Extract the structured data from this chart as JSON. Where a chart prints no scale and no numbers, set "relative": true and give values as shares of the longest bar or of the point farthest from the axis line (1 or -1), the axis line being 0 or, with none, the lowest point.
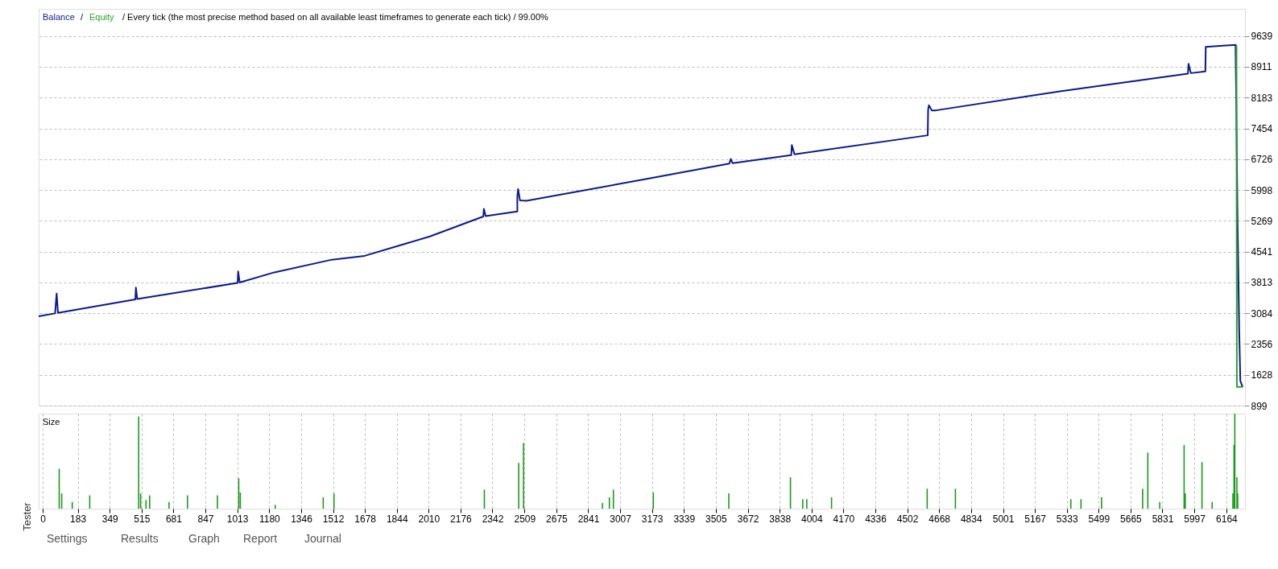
{
  "chart_data": [
    {
      "type": "line",
      "title": "/ Every tick (the most precise method based on all available least timeframes to generate each tick) / 99.00%",
      "legend": "top left",
      "annotations": [
        "/"
      ],
      "grid": true,
      "tick_labels": "y",
      "xlim": [
        0,
        6240
      ],
      "ylim": [
        899,
        10280
      ],
      "yticks": [
        899,
        1628,
        2356,
        3084,
        3813,
        4541,
        5269,
        5998,
        6726,
        7454,
        8183,
        8911,
        9639
      ],
      "series": [
        {
          "name": "Balance",
          "color": "#0a1a8c",
          "x": [
            0,
            85,
            93,
            100,
            500,
            503,
            510,
            1029,
            1032,
            1040,
            1219,
            1517,
            1686,
            2024,
            2300,
            2303,
            2312,
            2476,
            2476,
            2480,
            2490,
            2523,
            3146,
            3573,
            3580,
            3590,
            3893,
            3896,
            3910,
            4599,
            4601,
            4605,
            4620,
            4641,
            5283,
            5945,
            5948,
            5960,
            6035,
            6037,
            6191,
            6195,
            6201,
            6210,
            6216,
            6228
          ],
          "values": [
            3010,
            3080,
            3550,
            3090,
            3410,
            3690,
            3420,
            3800,
            4070,
            3810,
            4050,
            4350,
            4440,
            4900,
            5370,
            5550,
            5380,
            5490,
            5830,
            6020,
            5750,
            5740,
            6260,
            6620,
            6730,
            6630,
            6820,
            7060,
            6840,
            7290,
            7900,
            8000,
            7880,
            7880,
            8330,
            8750,
            8980,
            8760,
            8800,
            9380,
            9430,
            8040,
            5420,
            2700,
            1480,
            1340
          ]
        },
        {
          "name": "Equity",
          "color": "#2ca02c",
          "x": [
            6196,
            6198,
            6228
          ],
          "values": [
            9430,
            1340,
            1340
          ]
        }
      ]
    },
    {
      "type": "bar",
      "title": "Size",
      "relative": true,
      "grid": "x",
      "tick_labels": "x",
      "color": "#1a9a1a",
      "xlim": [
        0,
        6240
      ],
      "xticks": [
        0,
        183,
        349,
        515,
        681,
        847,
        1013,
        1180,
        1346,
        1512,
        1678,
        1844,
        2010,
        2176,
        2342,
        2509,
        2675,
        2841,
        3007,
        3173,
        3339,
        3505,
        3672,
        3838,
        4004,
        4170,
        4336,
        4502,
        4668,
        4834,
        5001,
        5167,
        5333,
        5499,
        5665,
        5831,
        5997,
        6164
      ],
      "x": [
        86,
        99,
        154,
        245,
        500,
        510,
        538,
        557,
        658,
        754,
        910,
        1021,
        1029,
        1211,
        1461,
        1517,
        2300,
        2479,
        2504,
        2915,
        2951,
        2972,
        3180,
        3573,
        3894,
        3958,
        3979,
        4108,
        4606,
        4753,
        5354,
        5407,
        5514,
        5728,
        5755,
        5817,
        5944,
        5950,
        6037,
        6090,
        6198,
        6204,
        6208,
        6219,
        6223
      ],
      "values": [
        0.42,
        0.16,
        0.07,
        0.14,
        0.97,
        0.16,
        0.09,
        0.14,
        0.07,
        0.14,
        0.14,
        0.32,
        0.17,
        0.04,
        0.12,
        0.16,
        0.2,
        0.48,
        0.69,
        0.06,
        0.12,
        0.2,
        0.17,
        0.16,
        0.33,
        0.1,
        0.1,
        0.12,
        0.21,
        0.21,
        0.1,
        0.1,
        0.12,
        0.21,
        0.59,
        0.07,
        0.67,
        0.16,
        0.49,
        0.07,
        0.16,
        0.67,
        1.0,
        0.33,
        0.16
      ],
      "annotations": [
        "Settings",
        "Results",
        "Graph",
        "Report",
        "Journal",
        "Tester"
      ]
    }
  ]
}
